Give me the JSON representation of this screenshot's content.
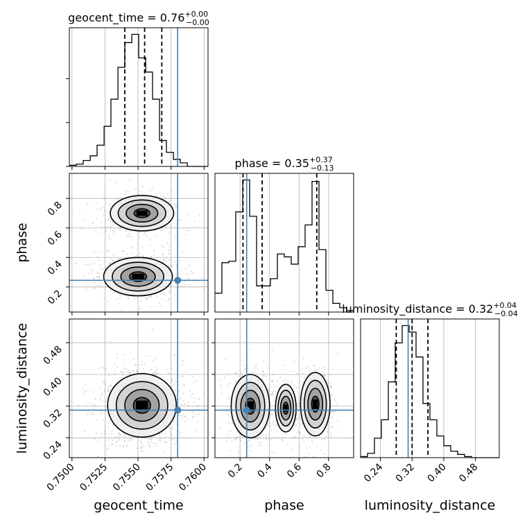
{
  "chart_data": {
    "type": "corner",
    "parameters": [
      {
        "name": "geocent_time",
        "xlabel": "geocent_time",
        "title": "geocent_time = 0.76",
        "title_sup": "+0.00",
        "title_sub": "−0.00",
        "range": [
          0.7498,
          0.7603
        ],
        "ticks": [
          0.75,
          0.7525,
          0.755,
          0.7575,
          0.76
        ],
        "tick_labels": [
          "0.7500",
          "0.7525",
          "0.7550",
          "0.7575",
          "0.7600"
        ],
        "truth": 0.758,
        "quantiles": [
          0.754,
          0.7555,
          0.7568
        ],
        "hist_edges": [
          0.7498,
          0.75033,
          0.75085,
          0.75138,
          0.7519,
          0.75243,
          0.75295,
          0.75348,
          0.754,
          0.75453,
          0.75505,
          0.75558,
          0.7561,
          0.75663,
          0.75715,
          0.75768,
          0.7582,
          0.75873,
          0.75925,
          0.75978,
          0.7603
        ],
        "hist_values": [
          1,
          2,
          5,
          9,
          18,
          34,
          57,
          84,
          105,
          112,
          92,
          80,
          57,
          22,
          12,
          6,
          3,
          0,
          0,
          0
        ]
      },
      {
        "name": "phase",
        "xlabel": "phase",
        "ylabel": "phase",
        "title": "phase = 0.35",
        "title_sup": "+0.37",
        "title_sub": "−0.13",
        "range": [
          0.03,
          0.97
        ],
        "ticks": [
          0.2,
          0.4,
          0.6,
          0.8
        ],
        "tick_labels": [
          "0.2",
          "0.4",
          "0.6",
          "0.8"
        ],
        "truth": 0.245,
        "quantiles": [
          0.22,
          0.35,
          0.72
        ],
        "hist_edges": [
          0.03,
          0.077,
          0.124,
          0.171,
          0.218,
          0.265,
          0.312,
          0.359,
          0.406,
          0.453,
          0.5,
          0.547,
          0.594,
          0.641,
          0.688,
          0.735,
          0.782,
          0.829,
          0.876,
          0.923,
          0.97
        ],
        "hist_values": [
          13,
          34,
          35,
          69,
          91,
          66,
          18,
          18,
          23,
          40,
          38,
          33,
          45,
          60,
          90,
          43,
          15,
          6,
          3,
          1
        ]
      },
      {
        "name": "luminosity_distance",
        "xlabel": "luminosity_distance",
        "ylabel": "luminosity_distance",
        "title": "luminosity_distance = 0.32",
        "title_sup": "+0.04",
        "title_sub": "−0.04",
        "range": [
          0.19,
          0.54
        ],
        "ticks": [
          0.24,
          0.32,
          0.4,
          0.48
        ],
        "tick_labels": [
          "0.24",
          "0.32",
          "0.40",
          "0.48"
        ],
        "truth": 0.31,
        "quantiles": [
          0.28,
          0.32,
          0.36
        ],
        "hist_edges": [
          0.19,
          0.2075,
          0.225,
          0.2425,
          0.26,
          0.2775,
          0.295,
          0.3125,
          0.33,
          0.3475,
          0.365,
          0.3825,
          0.4,
          0.4175,
          0.435,
          0.4525,
          0.47,
          0.4875,
          0.505,
          0.5225,
          0.54
        ],
        "hist_values": [
          1,
          4,
          18,
          35,
          70,
          106,
          122,
          116,
          93,
          50,
          35,
          20,
          11,
          6,
          3,
          1,
          0,
          0,
          0,
          0
        ]
      }
    ],
    "contours_2d": [
      {
        "x": "geocent_time",
        "y": "phase",
        "modes": [
          {
            "x": 0.7553,
            "y": 0.7,
            "sx": 0.0012,
            "sy": 0.06,
            "weight": 0.45
          },
          {
            "x": 0.755,
            "y": 0.27,
            "sx": 0.0013,
            "sy": 0.065,
            "weight": 0.55
          }
        ]
      },
      {
        "x": "geocent_time",
        "y": "luminosity_distance",
        "modes": [
          {
            "x": 0.7553,
            "y": 0.322,
            "sx": 0.0013,
            "sy": 0.04,
            "weight": 1
          }
        ]
      },
      {
        "x": "phase",
        "y": "luminosity_distance",
        "modes": [
          {
            "x": 0.27,
            "y": 0.32,
            "sx": 0.065,
            "sy": 0.04,
            "weight": 0.5
          },
          {
            "x": 0.51,
            "y": 0.315,
            "sx": 0.035,
            "sy": 0.03,
            "weight": 0.12
          },
          {
            "x": 0.71,
            "y": 0.325,
            "sx": 0.05,
            "sy": 0.04,
            "weight": 0.38
          }
        ]
      }
    ],
    "colors": {
      "truth": "#4682b4",
      "hist": "#000000",
      "quantile": "#000000",
      "grid": "#b0b0b0",
      "density": "#000000"
    },
    "grid": true,
    "legend": "none"
  }
}
